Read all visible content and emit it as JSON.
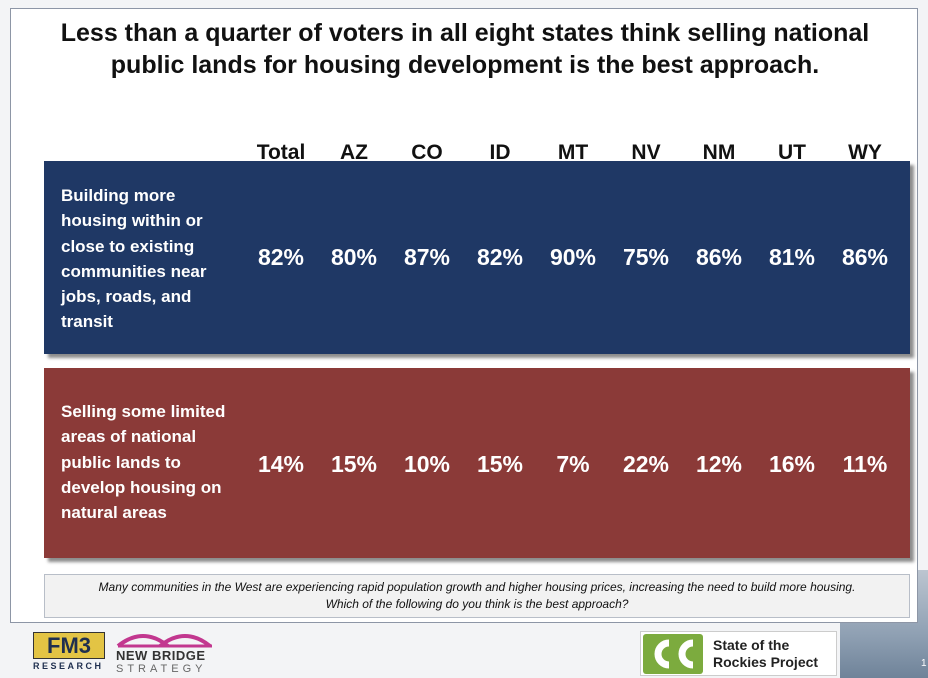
{
  "slide": {
    "title": "Less than a quarter of voters in all eight states think selling national public lands for housing development is the best approach.",
    "footnote_line1": "Many communities in the West are experiencing rapid population growth and higher housing prices, increasing the need to build more housing.",
    "footnote_line2": "Which of the following do you think is the best approach?",
    "page_number": "1"
  },
  "logos": {
    "fm3_top": "FM3",
    "fm3_bottom": "RESEARCH",
    "nbs_line1": "NEW BRIDGE",
    "nbs_line2": "STRATEGY",
    "rockies_text": "State of the Rockies Project",
    "rockies_color": "#7cab3e"
  },
  "colors": {
    "build_row": "#1f3865",
    "sell_row": "#8b3a38"
  },
  "chart_data": {
    "type": "table",
    "title": "Less than a quarter of voters in all eight states think selling national public lands for housing development is the best approach.",
    "columns": [
      "Total",
      "AZ",
      "CO",
      "ID",
      "MT",
      "NV",
      "NM",
      "UT",
      "WY"
    ],
    "rows": [
      {
        "label": "Building more housing within or close to existing communities near jobs, roads, and transit",
        "label_lines": [
          "Building more",
          "housing within or",
          "close to existing",
          "communities near",
          "jobs, roads, and",
          "transit"
        ],
        "values": [
          82,
          80,
          87,
          82,
          90,
          75,
          86,
          81,
          86
        ],
        "display": [
          "82%",
          "80%",
          "87%",
          "82%",
          "90%",
          "75%",
          "86%",
          "81%",
          "86%"
        ]
      },
      {
        "label": "Selling some limited areas of national public lands to develop housing on natural areas",
        "label_lines": [
          "Selling some limited",
          "areas of national",
          "public lands to",
          "develop housing on",
          "natural areas"
        ],
        "values": [
          14,
          15,
          10,
          15,
          7,
          22,
          12,
          16,
          11
        ],
        "display": [
          "14%",
          "15%",
          "10%",
          "15%",
          "7%",
          "22%",
          "12%",
          "16%",
          "11%"
        ]
      }
    ]
  }
}
